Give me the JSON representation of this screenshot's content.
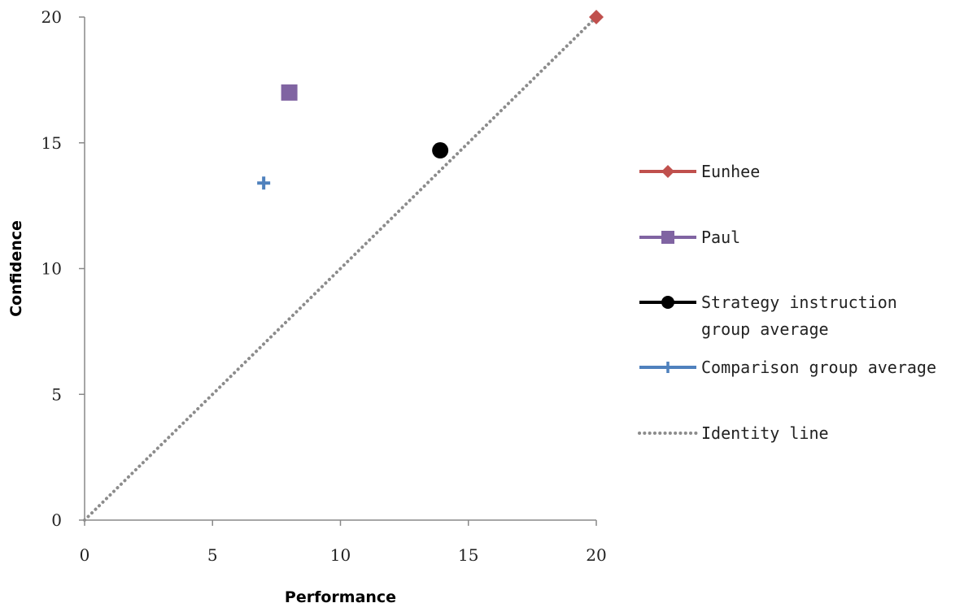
{
  "chart_data": {
    "type": "scatter",
    "title": "",
    "xlabel": "Performance",
    "ylabel": "Confidence",
    "xlim": [
      0,
      20
    ],
    "ylim": [
      0,
      20
    ],
    "x_ticks": [
      "0",
      "5",
      "10",
      "15",
      "20"
    ],
    "y_ticks": [
      "0",
      "5",
      "10",
      "15",
      "20"
    ],
    "grid": false,
    "legend_position": "right",
    "series": [
      {
        "name": "Eunhee",
        "x": 20,
        "y": 20,
        "marker": "diamond",
        "color": "#c0504d"
      },
      {
        "name": "Paul",
        "x": 8,
        "y": 17,
        "marker": "square",
        "color": "#8064a2"
      },
      {
        "name": "Strategy instruction group average",
        "name_lines": [
          "Strategy instruction",
          "group average"
        ],
        "x": 13.9,
        "y": 14.7,
        "marker": "circle",
        "color": "#000000"
      },
      {
        "name": "Comparison group average",
        "x": 7,
        "y": 13.4,
        "marker": "plus",
        "color": "#4f81bd"
      }
    ],
    "identity_line": {
      "name": "Identity line",
      "from": [
        0,
        0
      ],
      "to": [
        20,
        20
      ],
      "color": "#8c8c8c",
      "style": "dotted"
    }
  }
}
